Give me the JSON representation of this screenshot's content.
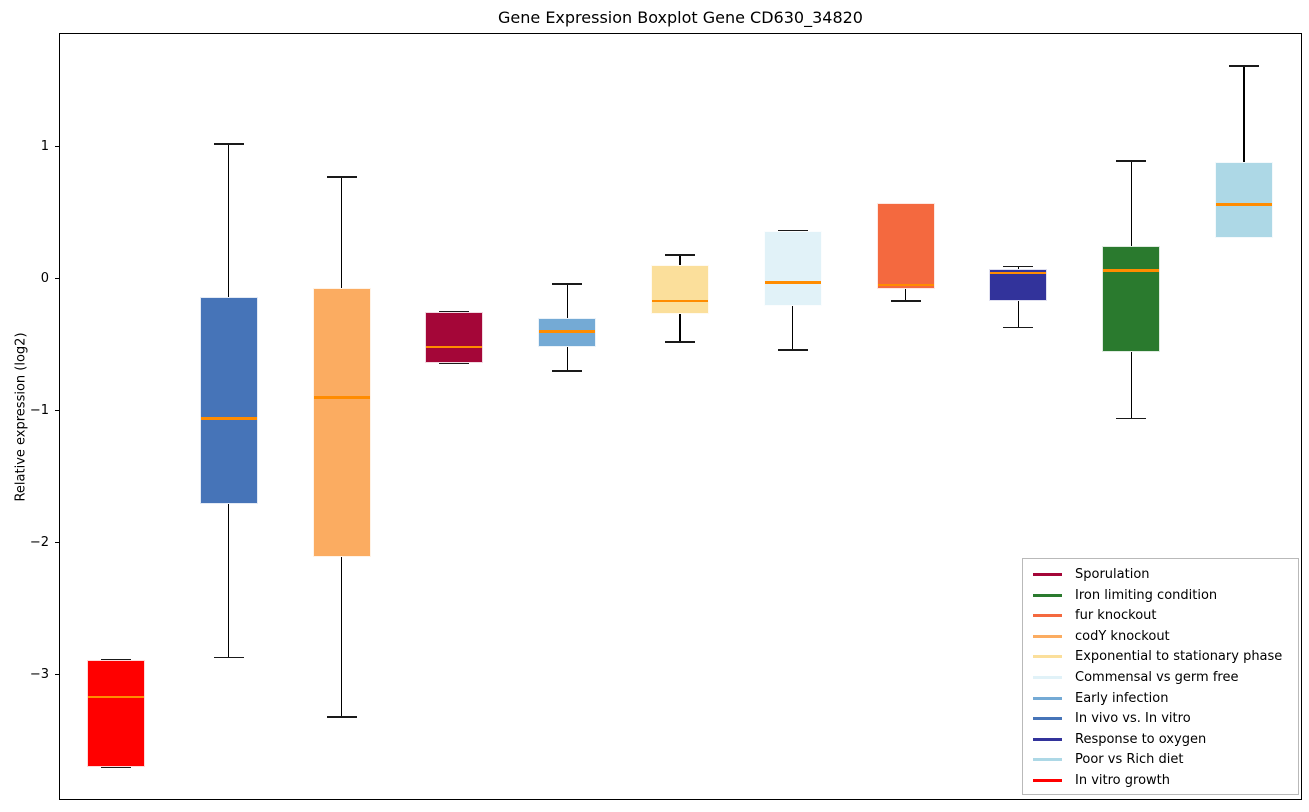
{
  "title": "Gene Expression Boxplot Gene CD630_34820",
  "chart_data": {
    "type": "boxplot",
    "title": "Gene Expression Boxplot Gene CD630_34820",
    "xlabel": "",
    "ylabel": "Relative expression (log2)",
    "ylim": [
      -3.95,
      1.86
    ],
    "grid": false,
    "legend_position": "lower right",
    "median_color": "#FF8C00",
    "whisker_color": "#000000",
    "yticks": [
      {
        "value": 1,
        "label": "1"
      },
      {
        "value": 0,
        "label": "0"
      },
      {
        "value": -1,
        "label": "−1"
      },
      {
        "value": -2,
        "label": "−2"
      },
      {
        "value": -3,
        "label": "−3"
      }
    ],
    "boxes": [
      {
        "label": "In vitro growth",
        "color": "#FF0000",
        "whisker_low": -3.7,
        "q1": -3.7,
        "median": -3.17,
        "q3": -2.89,
        "whisker_high": -2.89
      },
      {
        "label": "In vivo vs. In vitro",
        "color": "#4674B8",
        "whisker_low": -2.87,
        "q1": -1.71,
        "median": -1.06,
        "q3": -0.14,
        "whisker_high": 1.02
      },
      {
        "label": "codY knockout",
        "color": "#FBAC61",
        "whisker_low": -3.32,
        "q1": -2.11,
        "median": -0.9,
        "q3": -0.07,
        "whisker_high": 0.77
      },
      {
        "label": "Sporulation",
        "color": "#A40638",
        "whisker_low": -0.64,
        "q1": -0.64,
        "median": -0.52,
        "q3": -0.25,
        "whisker_high": -0.25
      },
      {
        "label": "Early infection",
        "color": "#74AAD5",
        "whisker_low": -0.7,
        "q1": -0.52,
        "median": -0.4,
        "q3": -0.3,
        "whisker_high": -0.04
      },
      {
        "label": "Exponential to stationary phase",
        "color": "#FBDF9B",
        "whisker_low": -0.48,
        "q1": -0.27,
        "median": -0.17,
        "q3": 0.1,
        "whisker_high": 0.18
      },
      {
        "label": "Commensal vs germ free",
        "color": "#E1F2F8",
        "whisker_low": -0.54,
        "q1": -0.21,
        "median": -0.03,
        "q3": 0.36,
        "whisker_high": 0.36
      },
      {
        "label": "fur knockout",
        "color": "#F4693F",
        "whisker_low": -0.17,
        "q1": -0.08,
        "median": -0.05,
        "q3": 0.57,
        "whisker_high": 0.57
      },
      {
        "label": "Response to oxygen",
        "color": "#32339B",
        "whisker_low": -0.37,
        "q1": -0.17,
        "median": 0.04,
        "q3": 0.07,
        "whisker_high": 0.09
      },
      {
        "label": "Iron limiting condition",
        "color": "#2A7A2E",
        "whisker_low": -1.06,
        "q1": -0.56,
        "median": 0.06,
        "q3": 0.25,
        "whisker_high": 0.89
      },
      {
        "label": "Poor vs Rich diet",
        "color": "#ADD8E6",
        "whisker_low": 0.31,
        "q1": 0.31,
        "median": 0.56,
        "q3": 0.88,
        "whisker_high": 1.61
      }
    ],
    "legend": [
      {
        "label": "Sporulation",
        "color": "#A40638"
      },
      {
        "label": "Iron limiting condition",
        "color": "#2A7A2E"
      },
      {
        "label": "fur knockout",
        "color": "#F4693F"
      },
      {
        "label": "codY knockout",
        "color": "#FBAC61"
      },
      {
        "label": "Exponential to stationary phase",
        "color": "#FBDF9B"
      },
      {
        "label": "Commensal vs germ free",
        "color": "#E1F2F8"
      },
      {
        "label": "Early infection",
        "color": "#74AAD5"
      },
      {
        "label": "In vivo vs. In vitro",
        "color": "#4674B8"
      },
      {
        "label": "Response to oxygen",
        "color": "#32339B"
      },
      {
        "label": "Poor vs Rich diet",
        "color": "#ADD8E6"
      },
      {
        "label": "In vitro growth",
        "color": "#FF0000"
      }
    ]
  }
}
